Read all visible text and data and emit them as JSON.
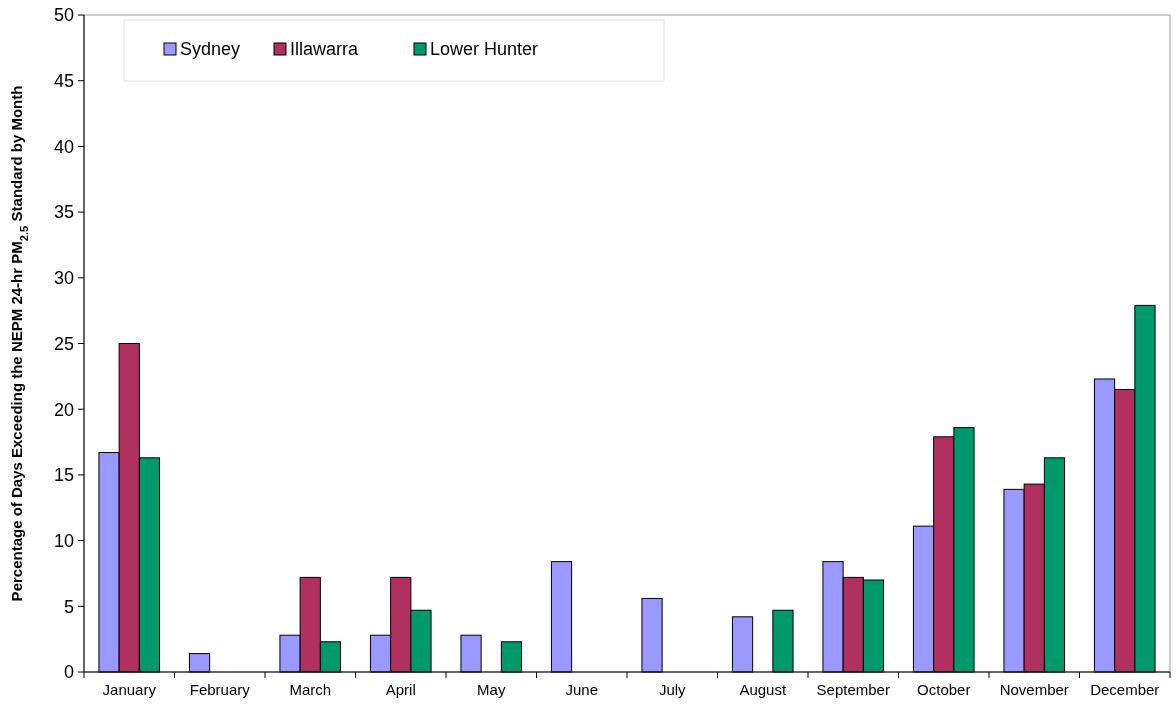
{
  "chart_data": {
    "type": "bar",
    "ylabel": "Percentage of Days Exceeding the NEPM 24-hr PM$_{2.5}$ Standard by Month",
    "categories": [
      "January",
      "February",
      "March",
      "April",
      "May",
      "June",
      "July",
      "August",
      "September",
      "October",
      "November",
      "December"
    ],
    "series": [
      {
        "name": "Sydney",
        "color": "#9999ff",
        "values": [
          16.7,
          1.4,
          2.8,
          2.8,
          2.8,
          8.4,
          5.6,
          4.2,
          8.4,
          11.1,
          13.9,
          22.3
        ]
      },
      {
        "name": "Illawarra",
        "color": "#b03060",
        "values": [
          25,
          0,
          7.2,
          7.2,
          0,
          0,
          0,
          0,
          7.2,
          17.9,
          14.3,
          21.5
        ]
      },
      {
        "name": "Lower Hunter",
        "color": "#00996b",
        "values": [
          16.3,
          0,
          2.3,
          4.7,
          2.3,
          0,
          0,
          4.7,
          7.0,
          18.6,
          16.3,
          27.9
        ]
      }
    ],
    "ylim": [
      0,
      50
    ],
    "yticks": [
      0,
      5,
      10,
      15,
      20,
      25,
      30,
      35,
      40,
      45,
      50
    ],
    "grid": false,
    "legend": "top left"
  }
}
